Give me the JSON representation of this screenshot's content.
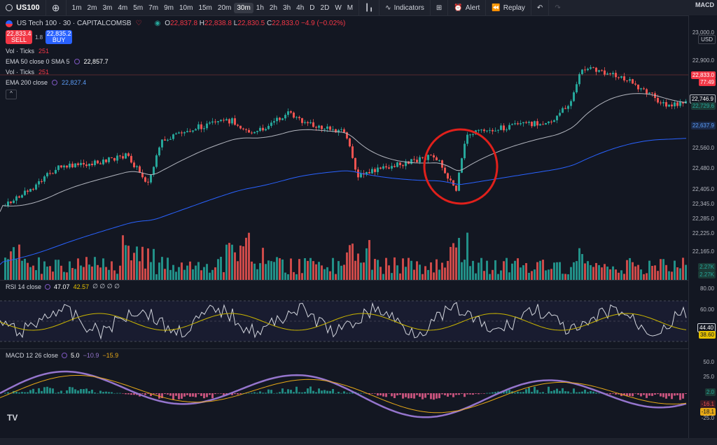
{
  "topbar": {
    "symbol": "US100",
    "plus": "⊕",
    "timeframes": [
      "1m",
      "2m",
      "3m",
      "4m",
      "5m",
      "7m",
      "9m",
      "10m",
      "15m",
      "20m",
      "30m",
      "1h",
      "2h",
      "3h",
      "4h",
      "D",
      "2D",
      "W",
      "M"
    ],
    "active_timeframe": "30m",
    "indicators_label": "Indicators",
    "alert_label": "Alert",
    "replay_label": "Replay",
    "macd_tab": "MACD"
  },
  "legend": {
    "title": "US Tech 100 · 30 · CAPITALCOMSB",
    "o_label": "O",
    "o": "22,837.8",
    "h_label": "H",
    "h": "22,838.8",
    "l_label": "L",
    "l": "22,830.5",
    "c_label": "C",
    "c": "22,833.0",
    "change": "−4.9 (−0.02%)",
    "sell_price": "22,833.4",
    "sell_label": "SELL",
    "spread": "1.8",
    "buy_price": "22,835.2",
    "buy_label": "BUY",
    "ind1_name": "Vol · Ticks",
    "ind1_val": "251",
    "ind2_name": "EMA 50 close 0 SMA 5",
    "ind2_val": "22,857.7",
    "ind3_name": "Vol · Ticks",
    "ind3_val": "251",
    "ind4_name": "EMA 200 close",
    "ind4_val": "22,827.4"
  },
  "axis": {
    "currency": "USD",
    "price_ticks": [
      "23,000.0",
      "22,900.0",
      "22,560.0",
      "22,480.0",
      "22,405.0",
      "22,345.0",
      "22,285.0",
      "22,225.0",
      "22,165.0"
    ],
    "tags": {
      "last": "22,833.0",
      "countdown": "77:49",
      "ema50": "22,746.9",
      "ema50b": "22,729.6",
      "ema200": "22,637.9",
      "vol1": "2.27K",
      "vol2": "2.27K"
    },
    "rsi_ticks": [
      "80.00",
      "60.00"
    ],
    "rsi_tags": {
      "rsi": "44.40",
      "ma": "38.60"
    },
    "macd_ticks": [
      "50.0",
      "25.0",
      "-25.0"
    ],
    "macd_tags": {
      "hist": "2.0",
      "macd": "-16.1",
      "signal": "-18.1"
    }
  },
  "rsi": {
    "label": "RSI 14 close",
    "v1": "47.07",
    "v2": "42.57",
    "extra": "∅ ∅ ∅ ∅"
  },
  "macd": {
    "label": "MACD 12 26 close",
    "v1": "5.0",
    "v2": "−10.9",
    "v3": "−15.9"
  },
  "colors": {
    "up": "#26a69a",
    "down": "#ef5350",
    "ema50": "#b2b5be",
    "ema200": "#2962ff",
    "annotation": "#e0201b",
    "rsi": "#d1d4dc",
    "rsi_ma": "#c9b400",
    "macd": "#9575cd",
    "signal": "#e6a817"
  }
}
